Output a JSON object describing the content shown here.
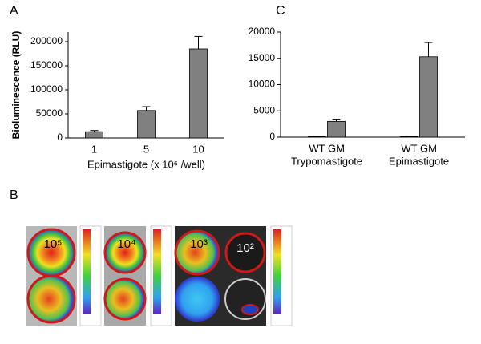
{
  "panels": {
    "A": "A",
    "B": "B",
    "C": "C",
    "B_labels": [
      "10⁵",
      "10⁴",
      "10³",
      "10²"
    ]
  },
  "chart_data": [
    {
      "type": "bar",
      "y_label": "Bioluminescence (RLU)",
      "x_label": "Epimastigote (x 10⁶ /well)",
      "categories": [
        "1",
        "5",
        "10"
      ],
      "values": [
        13000,
        57000,
        185000
      ],
      "errors": [
        2500,
        8000,
        26000
      ],
      "color": "#808080",
      "ylim": [
        0,
        220000
      ],
      "yticks": [
        0,
        50000,
        100000,
        150000,
        200000
      ],
      "grid": false
    },
    {
      "type": "bar",
      "categories": [
        "WT",
        "GM",
        "WT",
        "GM"
      ],
      "groups": [
        "Trypomastigote",
        "Epimastigote"
      ],
      "values": [
        100,
        3000,
        100,
        15300
      ],
      "errors": [
        0,
        300,
        0,
        2700
      ],
      "color": "#808080",
      "ylim": [
        0,
        20000
      ],
      "yticks": [
        0,
        5000,
        10000,
        15000,
        20000
      ],
      "grid": false
    }
  ]
}
